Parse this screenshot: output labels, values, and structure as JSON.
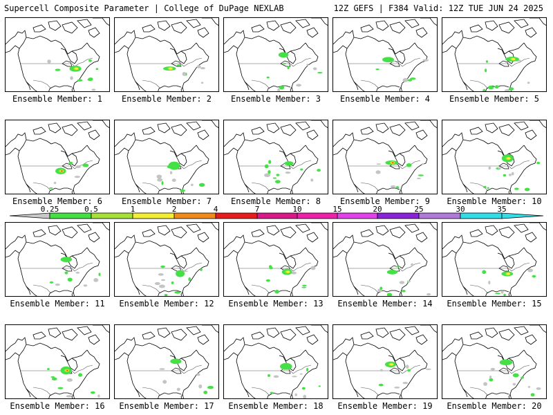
{
  "header": {
    "title_left": "Supercell Composite Parameter | College of DuPage NEXLAB",
    "title_right": "12Z GEFS | F384 Valid: 12Z TUE JUN 24 2025"
  },
  "colors": {
    "coast": "#000000",
    "border": "#555555",
    "gray": "#c4c4c4",
    "green": "#45e045",
    "yellowgreen": "#a8e03a",
    "yellow": "#f5f03a",
    "orange": "#f08a1a",
    "red": "#d81818"
  },
  "colorbar": {
    "labels": [
      "0.25",
      "0.5",
      "1",
      "2",
      "4",
      "7",
      "10",
      "15",
      "20",
      "25",
      "30",
      "35"
    ],
    "colors": [
      "#c8c8c8",
      "#44e044",
      "#a8e03a",
      "#f2ee36",
      "#f08a1a",
      "#e81c1c",
      "#d81888",
      "#ee22aa",
      "#e042e8",
      "#8a22d8",
      "#b07ad8",
      "#33dde8"
    ]
  },
  "members": [
    {
      "label": "Ensemble Member: 1",
      "intensity": "moderate"
    },
    {
      "label": "Ensemble Member: 2",
      "intensity": "moderate"
    },
    {
      "label": "Ensemble Member: 3",
      "intensity": "low"
    },
    {
      "label": "Ensemble Member: 4",
      "intensity": "low"
    },
    {
      "label": "Ensemble Member: 5",
      "intensity": "moderate"
    },
    {
      "label": "Ensemble Member: 6",
      "intensity": "high"
    },
    {
      "label": "Ensemble Member: 7",
      "intensity": "low"
    },
    {
      "label": "Ensemble Member: 8",
      "intensity": "low"
    },
    {
      "label": "Ensemble Member: 9",
      "intensity": "high"
    },
    {
      "label": "Ensemble Member: 10",
      "intensity": "moderate"
    },
    {
      "label": "Ensemble Member: 11",
      "intensity": "low"
    },
    {
      "label": "Ensemble Member: 12",
      "intensity": "low"
    },
    {
      "label": "Ensemble Member: 13",
      "intensity": "moderate"
    },
    {
      "label": "Ensemble Member: 14",
      "intensity": "low"
    },
    {
      "label": "Ensemble Member: 15",
      "intensity": "moderate"
    },
    {
      "label": "Ensemble Member: 16",
      "intensity": "high"
    },
    {
      "label": "Ensemble Member: 17",
      "intensity": "low"
    },
    {
      "label": "Ensemble Member: 18",
      "intensity": "low"
    },
    {
      "label": "Ensemble Member: 19",
      "intensity": "moderate"
    },
    {
      "label": "Ensemble Member: 20",
      "intensity": "low"
    }
  ]
}
